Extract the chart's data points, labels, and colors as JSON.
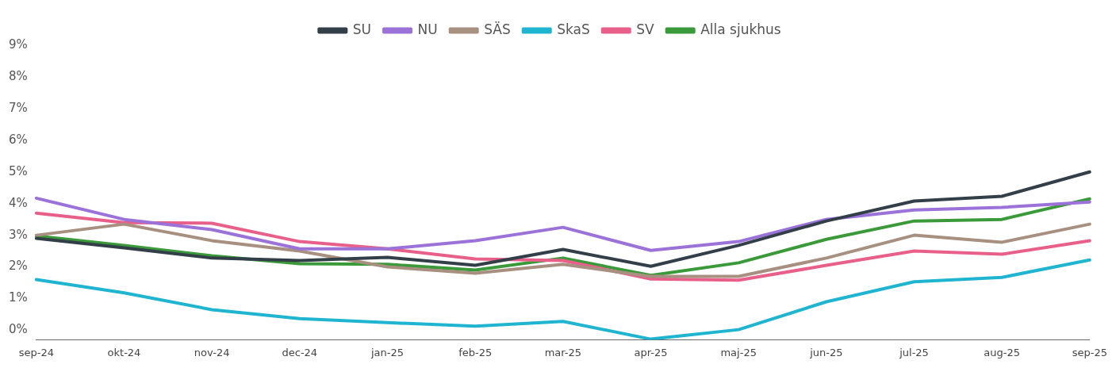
{
  "chart_data": {
    "type": "line",
    "categories": [
      "sep-24",
      "okt-24",
      "nov-24",
      "dec-24",
      "jan-25",
      "feb-25",
      "mar-25",
      "apr-25",
      "maj-25",
      "jun-25",
      "jul-25",
      "aug-25",
      "sep-25"
    ],
    "series": [
      {
        "name": "SU",
        "color": "#333f48",
        "values": [
          2.9,
          2.6,
          2.28,
          2.2,
          2.3,
          2.05,
          2.55,
          2.02,
          2.68,
          3.45,
          4.08,
          4.23,
          5.0
        ]
      },
      {
        "name": "NU",
        "color": "#9b72d8",
        "values": [
          4.17,
          3.5,
          3.18,
          2.57,
          2.57,
          2.83,
          3.25,
          2.52,
          2.8,
          3.5,
          3.8,
          3.88,
          4.05
        ]
      },
      {
        "name": "SÄS",
        "color": "#a89080",
        "values": [
          3.0,
          3.35,
          2.83,
          2.5,
          2.0,
          1.8,
          2.08,
          1.7,
          1.7,
          2.28,
          3.0,
          2.78,
          3.35
        ]
      },
      {
        "name": "SkaS",
        "color": "#1fb5d0",
        "values": [
          1.6,
          1.18,
          0.65,
          0.37,
          0.24,
          0.13,
          0.28,
          -0.28,
          0.02,
          0.9,
          1.53,
          1.67,
          2.22
        ]
      },
      {
        "name": "SV",
        "color": "#e8608a",
        "values": [
          3.7,
          3.4,
          3.38,
          2.8,
          2.57,
          2.25,
          2.2,
          1.62,
          1.58,
          2.05,
          2.5,
          2.4,
          2.83
        ]
      },
      {
        "name": "Alla sjukhus",
        "color": "#3a9a3a",
        "values": [
          2.98,
          2.68,
          2.35,
          2.1,
          2.08,
          1.9,
          2.28,
          1.73,
          2.13,
          2.87,
          3.45,
          3.5,
          4.15
        ]
      }
    ],
    "ylim": [
      -0.3,
      9
    ],
    "yticks": [
      {
        "value": 0,
        "label": "0%"
      },
      {
        "value": 1,
        "label": "1%"
      },
      {
        "value": 2,
        "label": "2%"
      },
      {
        "value": 3,
        "label": "3%"
      },
      {
        "value": 4,
        "label": "4%"
      },
      {
        "value": 5,
        "label": "5%"
      },
      {
        "value": 6,
        "label": "6%"
      },
      {
        "value": 7,
        "label": "7%"
      },
      {
        "value": 8,
        "label": "8%"
      },
      {
        "value": 9,
        "label": "9%"
      }
    ],
    "grid": false,
    "legend": "top",
    "marker": "none",
    "line_style": "solid"
  }
}
